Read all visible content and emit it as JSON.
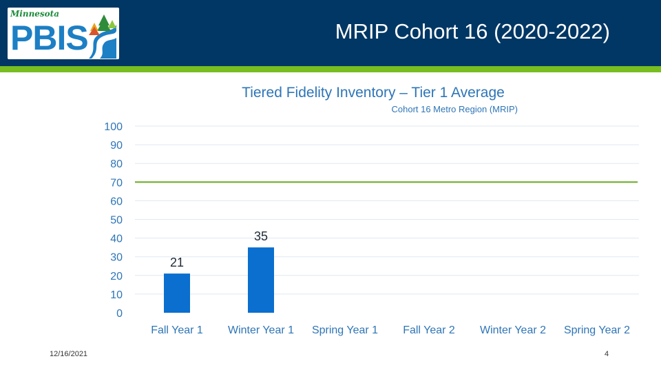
{
  "header": {
    "title": "MRIP Cohort 16 (2020-2022)",
    "background": "#003764",
    "accent_bar": "#78be21"
  },
  "logo": {
    "script_text": "Minnesota",
    "letters": "PBIS"
  },
  "footer": {
    "date": "12/16/2021",
    "page": "4"
  },
  "chart_data": {
    "type": "bar",
    "title": "Tiered Fidelity Inventory – Tier 1 Average",
    "subtitle": "Cohort 16 Metro Region (MRIP)",
    "categories": [
      "Fall Year 1",
      "Winter Year 1",
      "Spring Year 1",
      "Fall Year 2",
      "Winter Year 2",
      "Spring Year 2"
    ],
    "values": [
      21,
      35,
      null,
      null,
      null,
      null
    ],
    "data_labels": [
      "21",
      "35",
      "",
      "",
      "",
      ""
    ],
    "ylim": [
      0,
      100
    ],
    "yticks": [
      0,
      10,
      20,
      30,
      40,
      50,
      60,
      70,
      80,
      90,
      100
    ],
    "reference_line": 70,
    "bar_color": "#0b6fcf",
    "reference_color": "#6fae2d",
    "grid": true
  }
}
